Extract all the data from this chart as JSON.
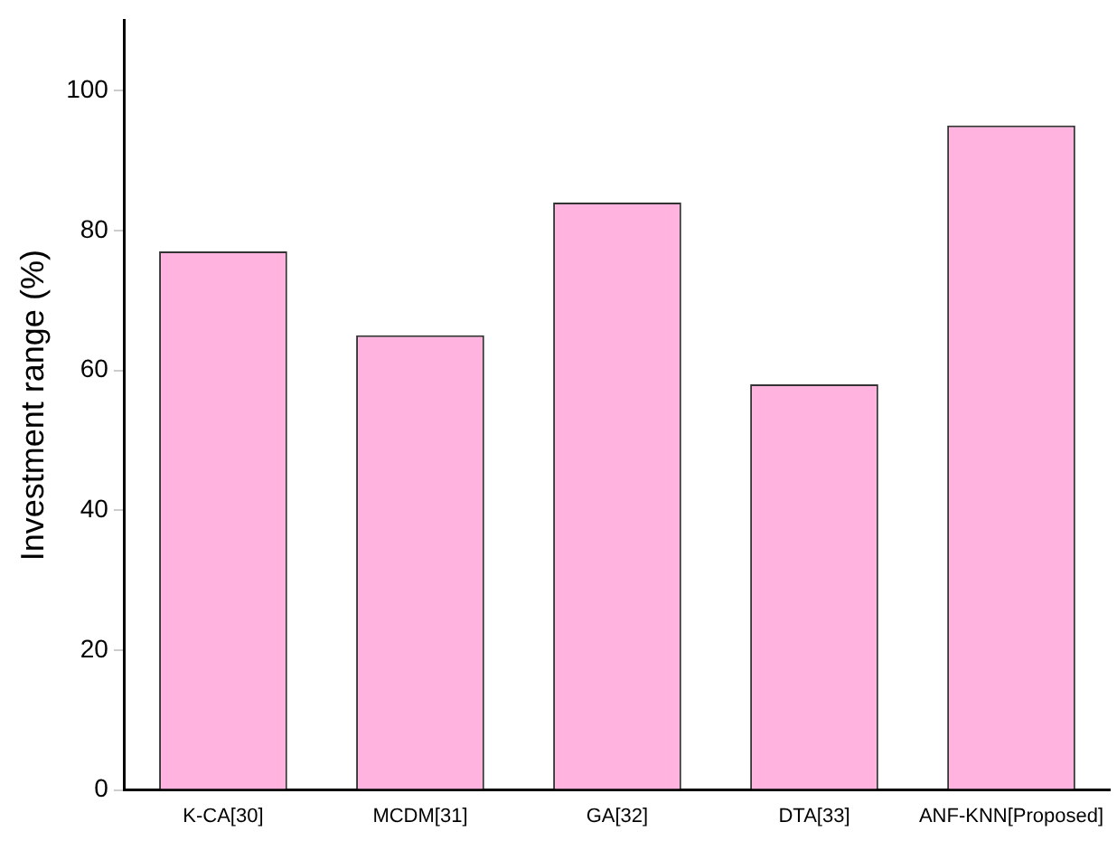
{
  "chart_data": {
    "type": "bar",
    "ylabel": "Investment range (%)",
    "categories": [
      "K-CA[30]",
      "MCDM[31]",
      "GA[32]",
      "DTA[33]",
      "ANF-KNN[Proposed]"
    ],
    "values": [
      77,
      65,
      84,
      58,
      95
    ],
    "color": "#ffb3de",
    "ylim": [
      0,
      110
    ],
    "yticks": [
      0,
      20,
      40,
      60,
      80,
      100
    ],
    "grid": false,
    "legend": false
  }
}
